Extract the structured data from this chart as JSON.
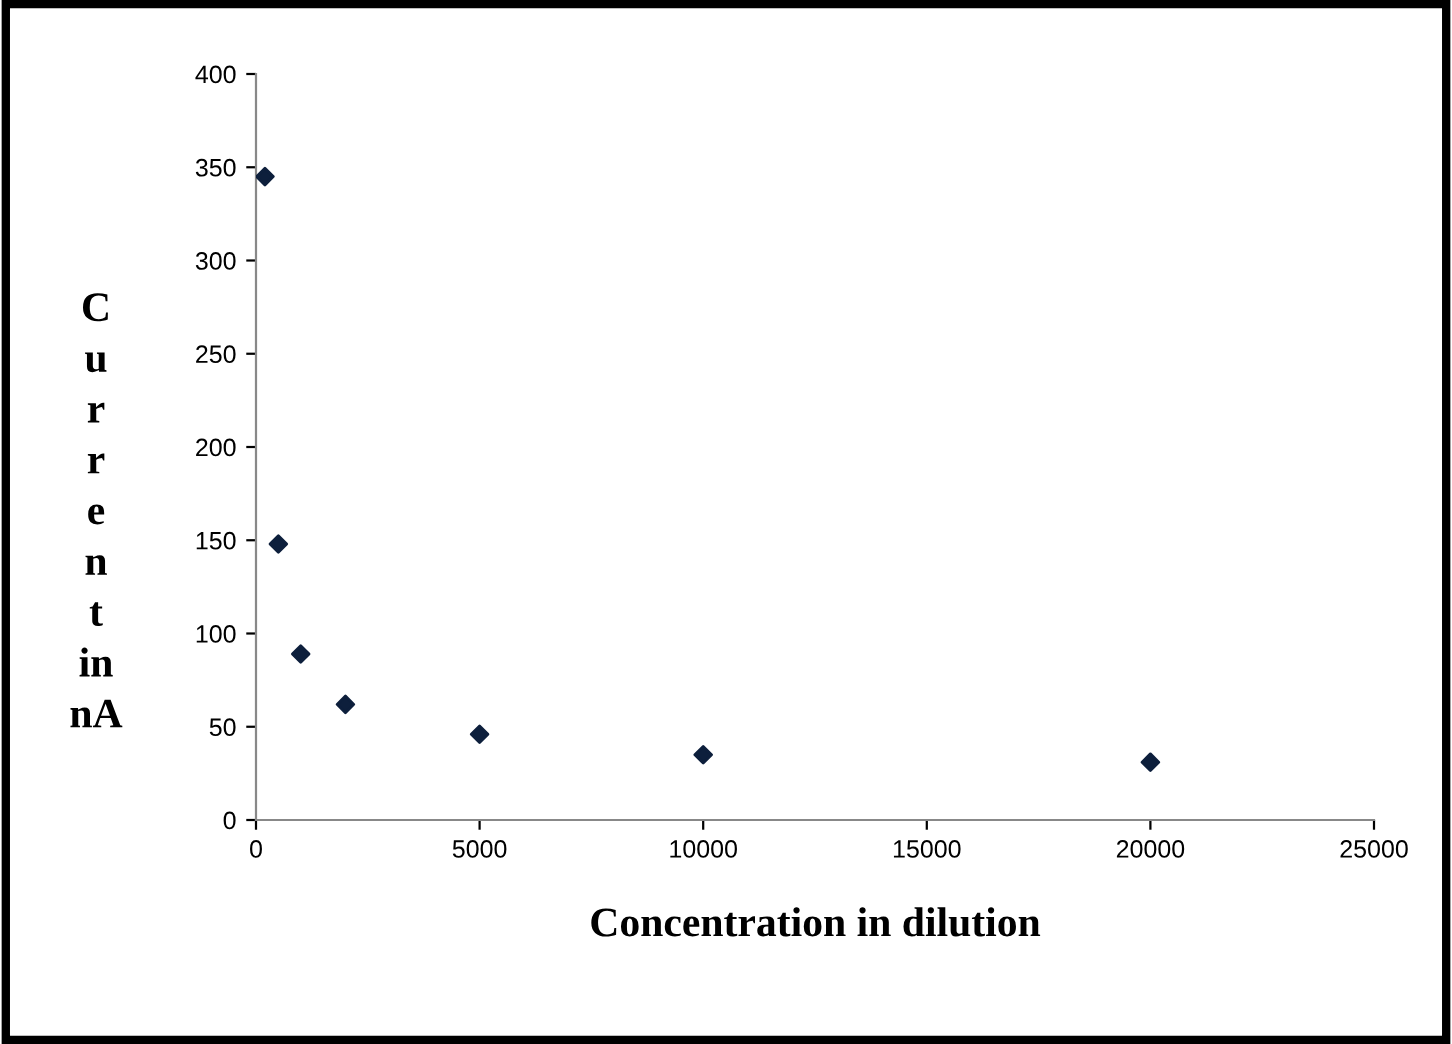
{
  "chart_data": {
    "type": "scatter",
    "xlabel": "Concentration in dilution",
    "ylabel": "Current in nA",
    "x": [
      200,
      500,
      1000,
      2000,
      5000,
      10000,
      20000
    ],
    "values": [
      345,
      148,
      89,
      62,
      46,
      35,
      31
    ],
    "color": "#0d1f3c",
    "marker": "diamond",
    "grid": false,
    "legend": false,
    "xlim": [
      0,
      25000
    ],
    "xticks": [
      0,
      5000,
      10000,
      15000,
      20000,
      25000
    ],
    "ylim": [
      0,
      400
    ],
    "yticks": [
      0,
      50,
      100,
      150,
      200,
      250,
      300,
      350,
      400
    ]
  }
}
